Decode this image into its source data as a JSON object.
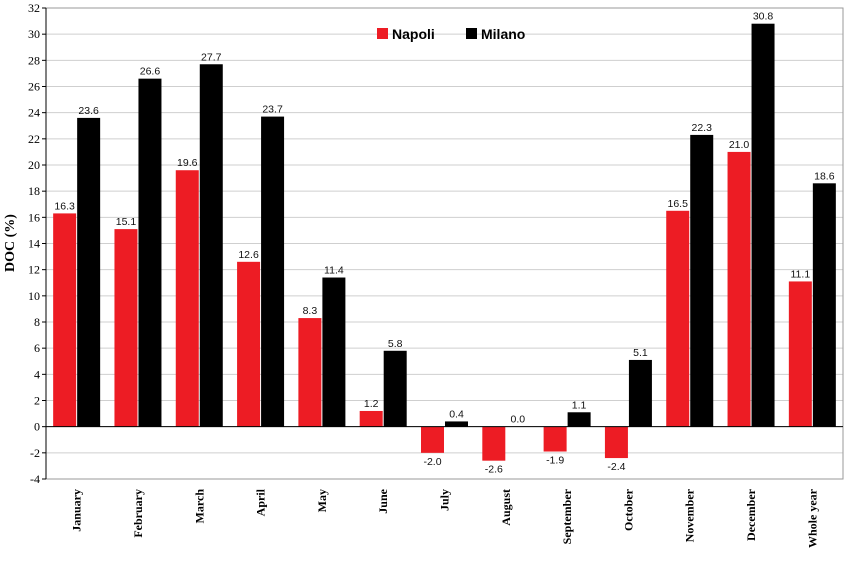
{
  "chart_data": {
    "type": "bar",
    "ylabel": "DOC (%)",
    "xlabel": "",
    "ylim": [
      -4,
      32
    ],
    "ytick_step": 2,
    "grid": true,
    "legend_position": "top-center",
    "categories": [
      "January",
      "February",
      "March",
      "April",
      "May",
      "June",
      "July",
      "August",
      "September",
      "October",
      "November",
      "December",
      "Whole year"
    ],
    "series": [
      {
        "name": "Napoli",
        "color": "#ed1c24",
        "values": [
          16.3,
          15.1,
          19.6,
          12.6,
          8.3,
          1.2,
          -2.0,
          -2.6,
          -1.9,
          -2.4,
          16.5,
          21.0,
          11.1
        ],
        "labels": [
          "16.3",
          "15.1",
          "19.6",
          "12.6",
          "8.3",
          "1.2",
          "-2.0",
          "-2.6",
          "-1.9",
          "-2.4",
          "16.5",
          "21.0",
          "11.1"
        ]
      },
      {
        "name": "Milano",
        "color": "#000000",
        "values": [
          23.6,
          26.6,
          27.7,
          23.7,
          11.4,
          5.8,
          0.4,
          0.0,
          1.1,
          5.1,
          22.3,
          30.8,
          18.6
        ],
        "labels": [
          "23.6",
          "26.6",
          "27.7",
          "23.7",
          "11.4",
          "5.8",
          "0.4",
          "0.0",
          "1.1",
          "5.1",
          "22.3",
          "30.8",
          "18.6"
        ]
      }
    ]
  }
}
